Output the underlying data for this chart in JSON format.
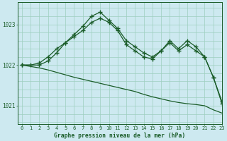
{
  "title": "Graphe pression niveau de la mer (hPa)",
  "background_color": "#cde9f0",
  "grid_color": "#9dcfbe",
  "line_color": "#1a5c28",
  "xlim": [
    -0.5,
    23
  ],
  "ylim": [
    1020.55,
    1023.55
  ],
  "yticks": [
    1021,
    1022,
    1023
  ],
  "xticks": [
    0,
    1,
    2,
    3,
    4,
    5,
    6,
    7,
    8,
    9,
    10,
    11,
    12,
    13,
    14,
    15,
    16,
    17,
    18,
    19,
    20,
    21,
    22,
    23
  ],
  "series": [
    {
      "x": [
        0,
        1,
        2,
        3,
        4,
        5,
        6,
        7,
        8,
        9,
        10,
        11,
        12,
        13,
        14,
        15,
        16,
        17,
        18,
        19,
        20,
        21,
        22,
        23
      ],
      "y": [
        1022.0,
        1022.0,
        1022.05,
        1022.2,
        1022.4,
        1022.55,
        1022.7,
        1022.85,
        1023.05,
        1023.15,
        1023.05,
        1022.85,
        1022.5,
        1022.35,
        1022.2,
        1022.15,
        1022.35,
        1022.55,
        1022.35,
        1022.5,
        1022.35,
        1022.2,
        1021.7,
        1021.05
      ],
      "marker": true
    },
    {
      "x": [
        0,
        2,
        3,
        4,
        5,
        6,
        7,
        8,
        9,
        10,
        11,
        12,
        13,
        14,
        15,
        16,
        17,
        18,
        19,
        20,
        21,
        22,
        23
      ],
      "y": [
        1022.0,
        1022.0,
        1022.1,
        1022.3,
        1022.55,
        1022.75,
        1022.95,
        1023.2,
        1023.3,
        1023.1,
        1022.9,
        1022.6,
        1022.45,
        1022.3,
        1022.2,
        1022.35,
        1022.6,
        1022.4,
        1022.6,
        1022.45,
        1022.2,
        1021.7,
        1021.1
      ],
      "marker": true
    },
    {
      "x": [
        0,
        2,
        3,
        4,
        5,
        6,
        7,
        8,
        9,
        10,
        11,
        12,
        13,
        14,
        15,
        16,
        17,
        18,
        19,
        20,
        21,
        22,
        23
      ],
      "y": [
        1022.0,
        1021.93,
        1021.88,
        1021.82,
        1021.76,
        1021.7,
        1021.65,
        1021.6,
        1021.55,
        1021.5,
        1021.45,
        1021.4,
        1021.35,
        1021.28,
        1021.22,
        1021.17,
        1021.12,
        1021.08,
        1021.05,
        1021.03,
        1021.0,
        1020.9,
        1020.82
      ],
      "marker": false
    }
  ]
}
